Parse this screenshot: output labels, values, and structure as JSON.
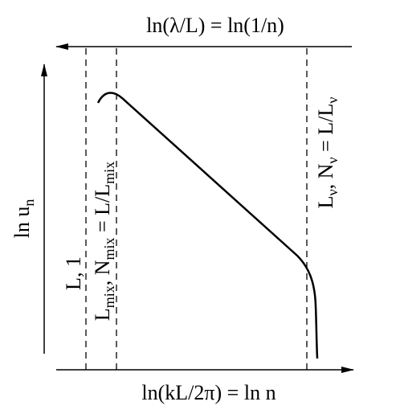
{
  "top_axis_label": [
    "ln(λ/L) = ln(1/n)"
  ],
  "x_axis_label": [
    "ln(kL/2π) = ln n"
  ],
  "y_axis_label": [
    "ln u",
    "n"
  ],
  "markers": [
    {
      "label": [
        "L, 1"
      ]
    },
    {
      "label": [
        "L",
        "mix",
        ", N",
        "mix",
        " = L/L",
        "mix"
      ]
    },
    {
      "label": [
        "L",
        "ν",
        ", N",
        "ν",
        " = L/L",
        "ν"
      ]
    }
  ]
}
